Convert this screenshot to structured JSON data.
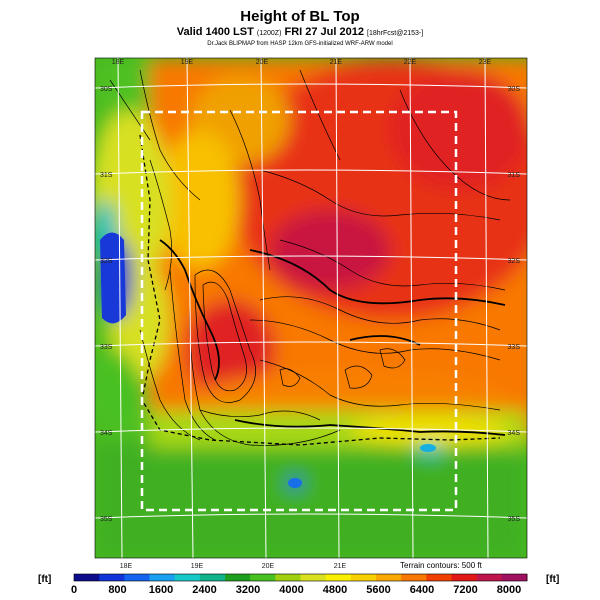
{
  "header": {
    "title": "Height of BL Top",
    "subtitle_main": "Valid 1400 LST",
    "subtitle_small1": "(1200Z)",
    "subtitle_date": "FRI 27 Jul 2012",
    "subtitle_small2": "[18hrFcst@2153-]",
    "credit": "Dr.Jack BLIPMAP from HASP 12km GFS-initialized WRF-ARW model"
  },
  "map": {
    "top_lon_labels": [
      "18E",
      "19E",
      "20E",
      "21E",
      "22E",
      "23E"
    ],
    "bottom_lon_labels": [
      "18E",
      "19E",
      "20E",
      "21E"
    ],
    "left_lat_labels": [
      "30S",
      "31S",
      "32S",
      "33S",
      "34S",
      "35S"
    ],
    "right_lat_labels": [
      "30S",
      "31S",
      "32S",
      "33S",
      "34S",
      "35S"
    ],
    "terrain_note": "Terrain contours: 500 ft"
  },
  "colorbar": {
    "unit_left": "[ft]",
    "unit_right": "[ft]",
    "ticks": [
      "0",
      "800",
      "1600",
      "2400",
      "3200",
      "4000",
      "4800",
      "5600",
      "6400",
      "7200",
      "8000"
    ],
    "colors": [
      "#0c0c8c",
      "#1034d8",
      "#1464f0",
      "#1aa0f0",
      "#18c8c8",
      "#10b48c",
      "#1ea01e",
      "#48c020",
      "#a0d010",
      "#d8e020",
      "#f8f000",
      "#f8d000",
      "#f8a800",
      "#f87800",
      "#f04000",
      "#e01818",
      "#c0144c",
      "#a01060"
    ]
  }
}
